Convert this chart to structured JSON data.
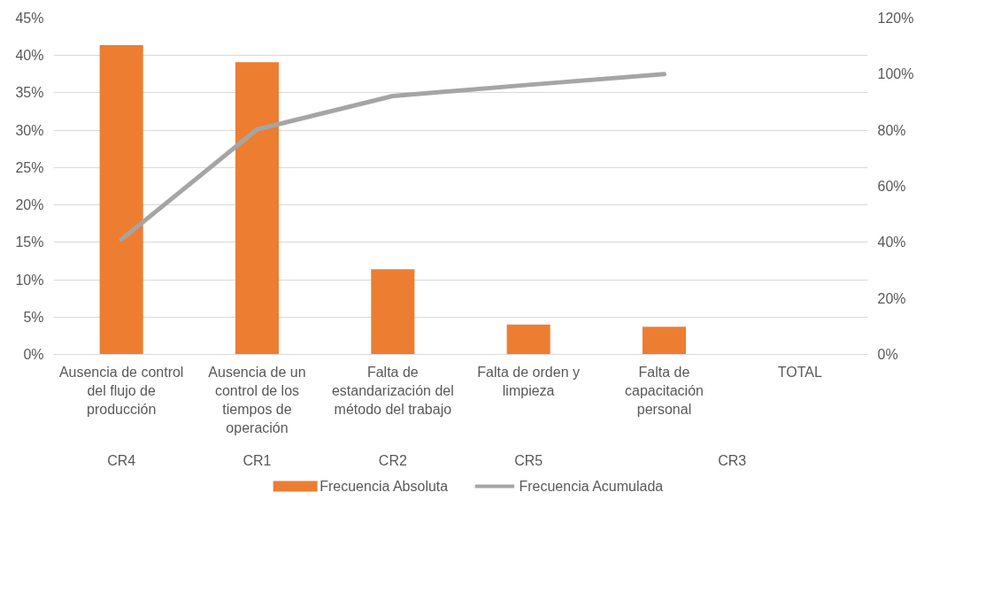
{
  "chart_data": {
    "type": "bar",
    "categories": [
      "Ausencia de control del flujo de producción",
      "Ausencia de un control de los tiempos de operación",
      "Falta de estandarización del método del trabajo",
      "Falta de orden y limpieza",
      "Falta de capacitación personal",
      "TOTAL"
    ],
    "series": [
      {
        "name": "Frecuencia Absoluta",
        "color": "#ed7d31",
        "values": [
          41.4,
          39.1,
          11.4,
          4.0,
          3.7,
          null
        ]
      },
      {
        "name": "Frecuencia Acumulada",
        "type": "line",
        "axis": "y2",
        "color": "#a5a5a5",
        "values": [
          41,
          80.3,
          92.2,
          96.2,
          100,
          null
        ]
      }
    ],
    "annotations": [
      "CR4",
      "CR1",
      "CR2",
      "CR5",
      "CR3"
    ],
    "ylim": [
      0,
      45
    ],
    "yticks": [
      {
        "value": 0,
        "label": "0%"
      },
      {
        "value": 5,
        "label": "5%"
      },
      {
        "value": 10,
        "label": "10%"
      },
      {
        "value": 15,
        "label": "15%"
      },
      {
        "value": 20,
        "label": "20%"
      },
      {
        "value": 25,
        "label": "25%"
      },
      {
        "value": 30,
        "label": "30%"
      },
      {
        "value": 35,
        "label": "35%"
      },
      {
        "value": 40,
        "label": "40%"
      },
      {
        "value": 45,
        "label": "45%"
      }
    ],
    "y2lim": [
      0,
      120
    ],
    "y2ticks": [
      {
        "value": 0,
        "label": "0%"
      },
      {
        "value": 20,
        "label": "20%"
      },
      {
        "value": 40,
        "label": "40%"
      },
      {
        "value": 60,
        "label": "60%"
      },
      {
        "value": 80,
        "label": "80%"
      },
      {
        "value": 100,
        "label": "100%"
      },
      {
        "value": 120,
        "label": "120%"
      }
    ],
    "grid": "y",
    "legend": "bottom",
    "line_style": "solid",
    "marker": "none"
  }
}
